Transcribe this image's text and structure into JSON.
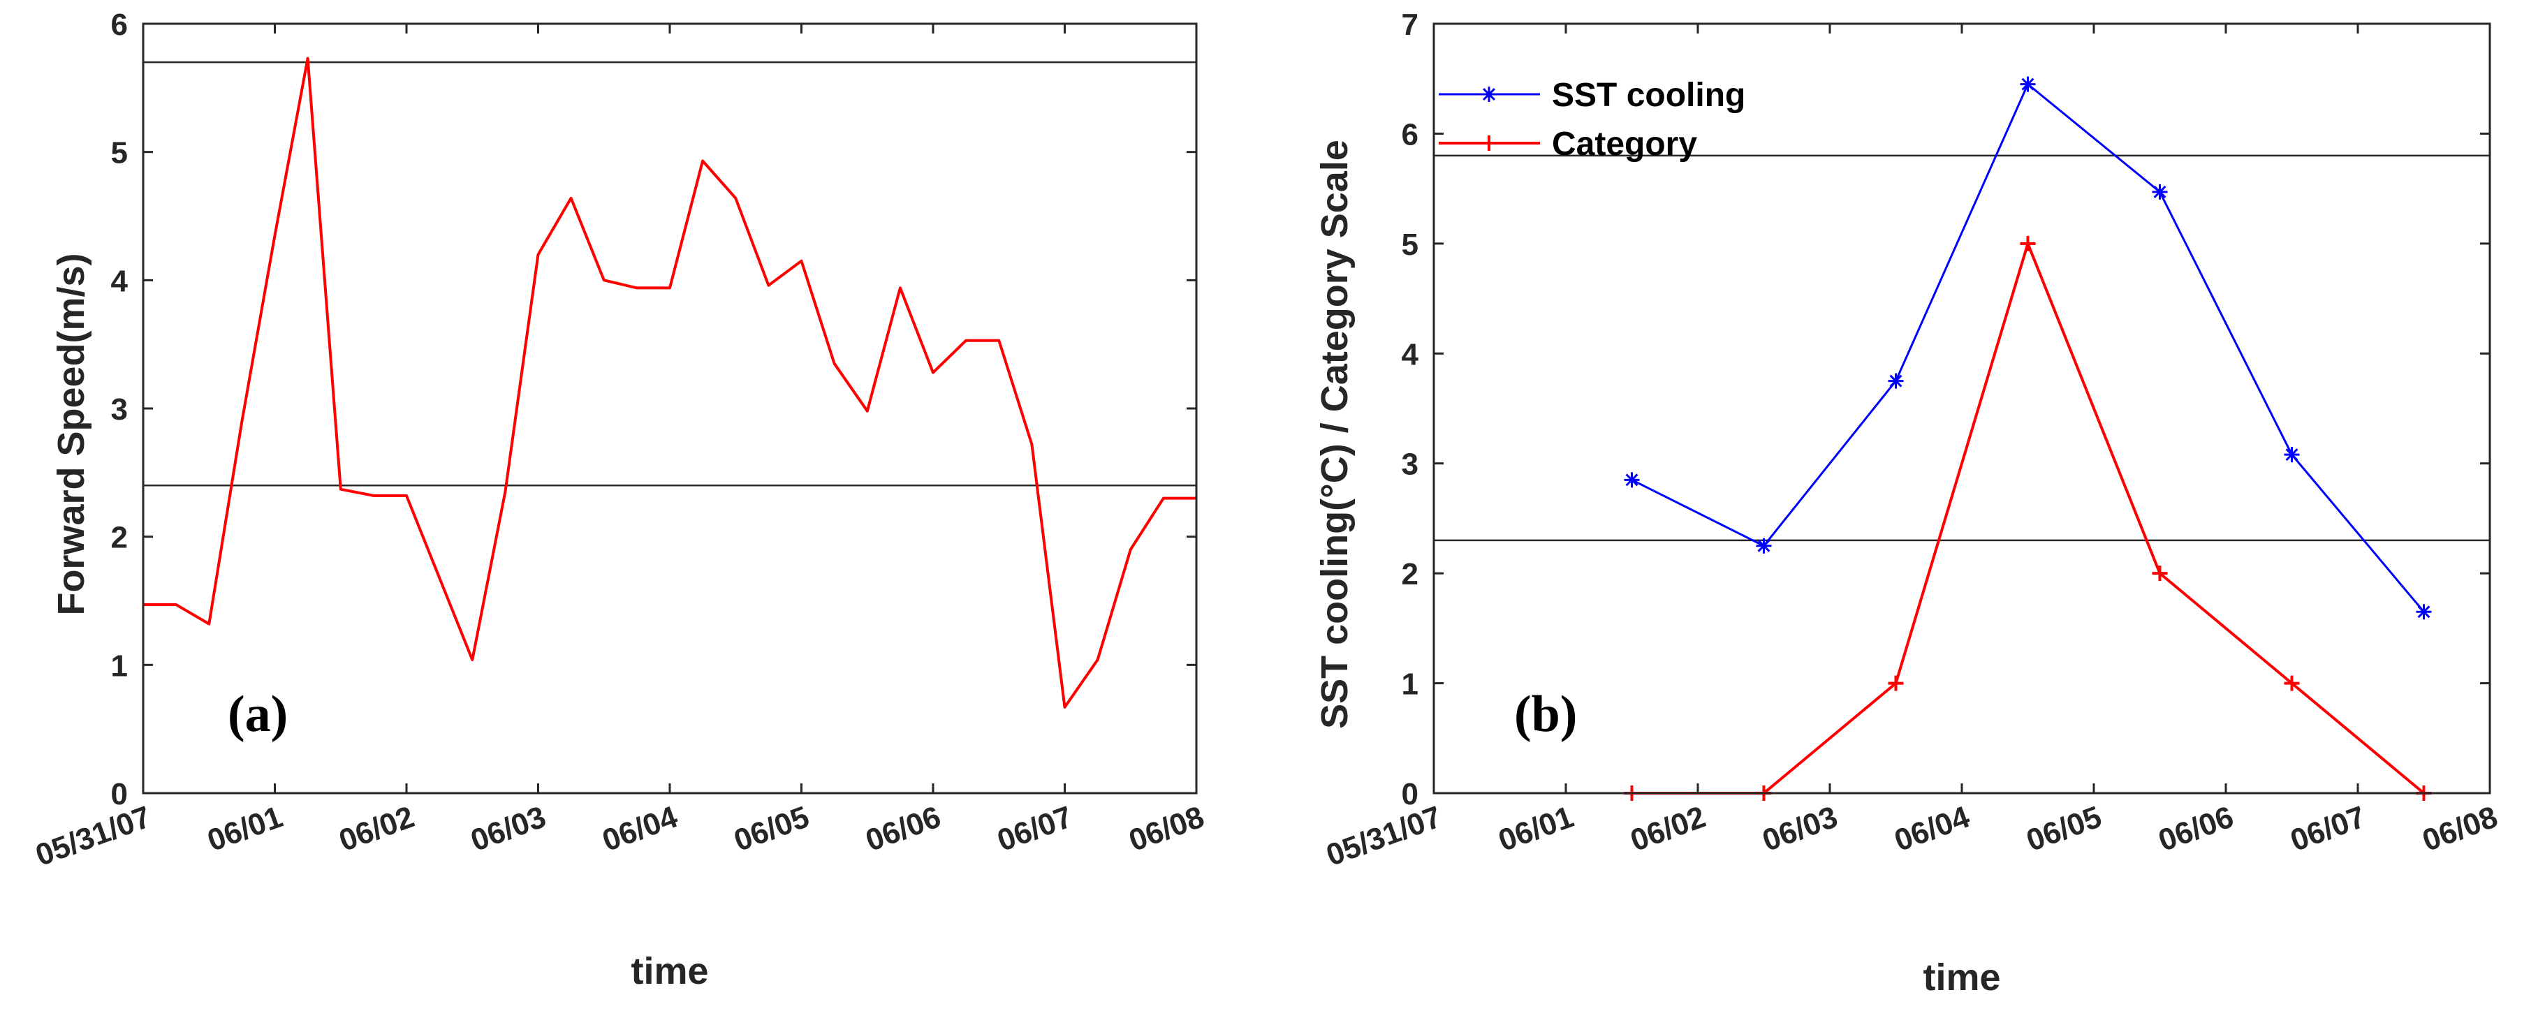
{
  "chart_data": [
    {
      "panel_label": "(a)",
      "type": "line",
      "xlabel": "time",
      "ylabel": "Forward Speed(m/s)",
      "xlim": [
        0,
        8
      ],
      "ylim": [
        0,
        6
      ],
      "x_tick_values": [
        0,
        1,
        2,
        3,
        4,
        5,
        6,
        7,
        8
      ],
      "x_tick_labels": [
        "05/31/07",
        "06/01",
        "06/02",
        "06/03",
        "06/04",
        "06/05",
        "06/06",
        "06/07",
        "06/08"
      ],
      "y_ticks": [
        0,
        1,
        2,
        3,
        4,
        5,
        6
      ],
      "reference_lines": [
        5.7,
        2.4
      ],
      "series": [
        {
          "name": "Forward Speed",
          "color": "#ff0000",
          "marker": "none",
          "x": [
            0.0,
            0.25,
            0.5,
            0.75,
            1.0,
            1.25,
            1.5,
            1.75,
            2.0,
            2.25,
            2.5,
            2.75,
            3.0,
            3.25,
            3.5,
            3.75,
            4.0,
            4.25,
            4.5,
            4.75,
            5.0,
            5.25,
            5.5,
            5.75,
            6.0,
            6.25,
            6.5,
            6.75,
            7.0,
            7.25,
            7.5,
            7.75,
            8.0
          ],
          "y": [
            1.47,
            1.47,
            1.32,
            2.9,
            4.35,
            5.73,
            2.37,
            2.32,
            2.32,
            1.68,
            1.04,
            2.35,
            4.2,
            4.64,
            4.0,
            3.94,
            3.94,
            4.93,
            4.64,
            3.96,
            4.15,
            3.35,
            2.98,
            3.94,
            3.28,
            3.53,
            3.53,
            2.72,
            0.67,
            1.04,
            1.9,
            2.3,
            2.3
          ]
        }
      ]
    },
    {
      "panel_label": "(b)",
      "type": "line",
      "xlabel": "time",
      "ylabel": "SST cooling(°C) / Category Scale",
      "xlim": [
        0,
        8
      ],
      "ylim": [
        0,
        7
      ],
      "x_tick_values": [
        0,
        1,
        2,
        3,
        4,
        5,
        6,
        7,
        8
      ],
      "x_tick_labels": [
        "05/31/07",
        "06/01",
        "06/02",
        "06/03",
        "06/04",
        "06/05",
        "06/06",
        "06/07",
        "06/08"
      ],
      "y_ticks": [
        0,
        1,
        2,
        3,
        4,
        5,
        6,
        7
      ],
      "reference_lines": [
        5.8,
        2.3
      ],
      "legend_position": "top-left",
      "series": [
        {
          "name": "SST cooling",
          "color": "#0000ff",
          "marker": "*",
          "x": [
            1.5,
            2.5,
            3.5,
            4.5,
            5.5,
            6.5,
            7.5
          ],
          "y": [
            2.85,
            2.25,
            3.75,
            6.45,
            5.47,
            3.08,
            1.65
          ]
        },
        {
          "name": "Category",
          "color": "#ff0000",
          "marker": "+",
          "x": [
            1.5,
            2.5,
            3.5,
            4.5,
            5.5,
            6.5,
            7.5
          ],
          "y": [
            0,
            0,
            1,
            5,
            2,
            1,
            0
          ]
        }
      ]
    }
  ]
}
